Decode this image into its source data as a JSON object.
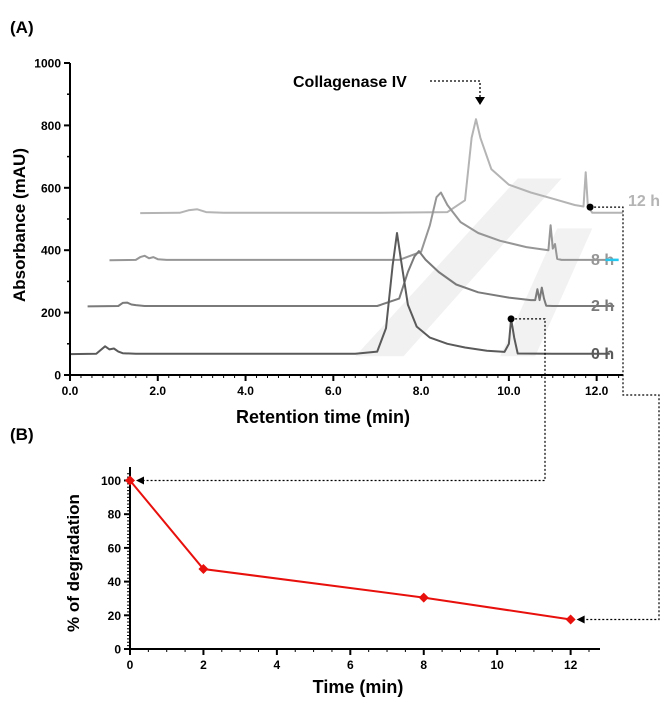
{
  "panels": {
    "a_label": "(A)",
    "b_label": "(B)"
  },
  "chart_data": [
    {
      "panel": "A",
      "type": "line",
      "xlabel": "Retention time (min)",
      "ylabel": "Absorbance (mAU)",
      "xlim": [
        0,
        12.6
      ],
      "ylim": [
        0,
        1000
      ],
      "x_ticks": [
        "0.0",
        "2.0",
        "4.0",
        "6.0",
        "8.0",
        "10.0",
        "12.0"
      ],
      "y_ticks": [
        "0",
        "200",
        "400",
        "600",
        "800",
        "1000"
      ],
      "annotation": "Collagenase IV",
      "series": [
        {
          "name": "0 h",
          "color": "#5a5a5a",
          "x": [
            0.0,
            0.6,
            0.7,
            0.8,
            0.9,
            1.0,
            1.1,
            1.2,
            1.5,
            3.0,
            5.0,
            6.5,
            7.0,
            7.2,
            7.35,
            7.45,
            7.55,
            7.7,
            7.9,
            8.2,
            8.6,
            9.0,
            9.5,
            9.9,
            10.0,
            10.05,
            10.12,
            10.2,
            11.0,
            12.3
          ],
          "y": [
            67,
            68,
            80,
            92,
            82,
            85,
            75,
            70,
            68,
            68,
            68,
            68,
            75,
            150,
            350,
            455,
            360,
            225,
            155,
            120,
            100,
            88,
            78,
            74,
            100,
            180,
            120,
            69,
            68,
            68
          ]
        },
        {
          "name": "2 h",
          "color": "#7a7a7a",
          "x": [
            0.4,
            1.1,
            1.2,
            1.3,
            1.4,
            1.5,
            1.7,
            3.0,
            5.0,
            7.0,
            7.5,
            7.7,
            7.85,
            7.95,
            8.1,
            8.4,
            8.8,
            9.3,
            10.0,
            10.5,
            10.6,
            10.65,
            10.7,
            10.75,
            10.8,
            10.85,
            11.0,
            12.4
          ],
          "y": [
            220,
            221,
            231,
            232,
            226,
            224,
            221,
            221,
            221,
            221,
            245,
            330,
            380,
            397,
            370,
            330,
            290,
            265,
            248,
            240,
            240,
            275,
            240,
            280,
            245,
            222,
            221,
            221
          ]
        },
        {
          "name": "8 h",
          "color": "#969696",
          "x": [
            0.9,
            1.5,
            1.6,
            1.7,
            1.8,
            1.9,
            2.0,
            2.2,
            3.0,
            5.0,
            7.5,
            8.0,
            8.2,
            8.35,
            8.45,
            8.6,
            8.9,
            9.3,
            9.8,
            10.4,
            10.9,
            10.95,
            11.0,
            11.05,
            11.1,
            11.2,
            12.0,
            12.5
          ],
          "y": [
            368,
            369,
            378,
            382,
            374,
            378,
            371,
            369,
            369,
            369,
            369,
            395,
            480,
            570,
            585,
            545,
            490,
            455,
            430,
            410,
            400,
            480,
            405,
            420,
            372,
            369,
            369,
            369
          ]
        },
        {
          "name": "12 h",
          "color": "#b4b4b4",
          "x": [
            1.6,
            2.5,
            2.7,
            2.9,
            3.1,
            3.5,
            5.0,
            7.0,
            8.6,
            9.0,
            9.15,
            9.25,
            9.35,
            9.6,
            10.0,
            10.5,
            11.0,
            11.5,
            11.7,
            11.75,
            11.8,
            11.9,
            12.6
          ],
          "y": [
            519,
            520,
            528,
            531,
            522,
            520,
            520,
            520,
            522,
            560,
            760,
            820,
            760,
            660,
            610,
            585,
            565,
            545,
            540,
            650,
            540,
            520,
            520
          ]
        }
      ]
    },
    {
      "panel": "B",
      "type": "line",
      "xlabel": "Time (min)",
      "ylabel": "% of degradation",
      "xlim": [
        0,
        12.8
      ],
      "ylim": [
        0,
        108
      ],
      "x_ticks": [
        "0",
        "2",
        "4",
        "6",
        "8",
        "10",
        "12"
      ],
      "y_ticks": [
        "0",
        "20",
        "40",
        "60",
        "80",
        "100"
      ],
      "series": [
        {
          "color": "#e8100c",
          "x": [
            0,
            2,
            8,
            12
          ],
          "y": [
            100,
            47.5,
            30.5,
            17.5
          ]
        }
      ]
    }
  ]
}
